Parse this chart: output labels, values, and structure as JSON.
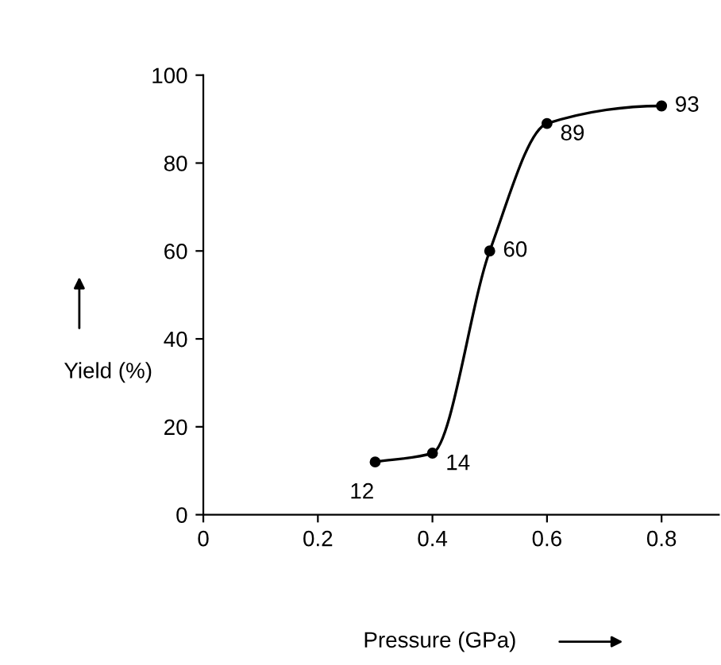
{
  "chart_data": {
    "type": "line",
    "xlabel": "Pressure (GPa)",
    "ylabel": "Yield (%)",
    "x": [
      0.3,
      0.4,
      0.5,
      0.6,
      0.8
    ],
    "series": [
      {
        "color": "#000000",
        "values": [
          12,
          14,
          60,
          89,
          93
        ]
      }
    ],
    "xlim": [
      0,
      0.9
    ],
    "ylim": [
      0,
      100
    ],
    "xticks": [
      0,
      0.2,
      0.4,
      0.6,
      0.8
    ],
    "yticks": [
      0,
      20,
      40,
      60,
      80,
      100
    ],
    "marker": "circle",
    "line_style": "solid",
    "data_labels": true,
    "grid": false,
    "legend": false
  }
}
